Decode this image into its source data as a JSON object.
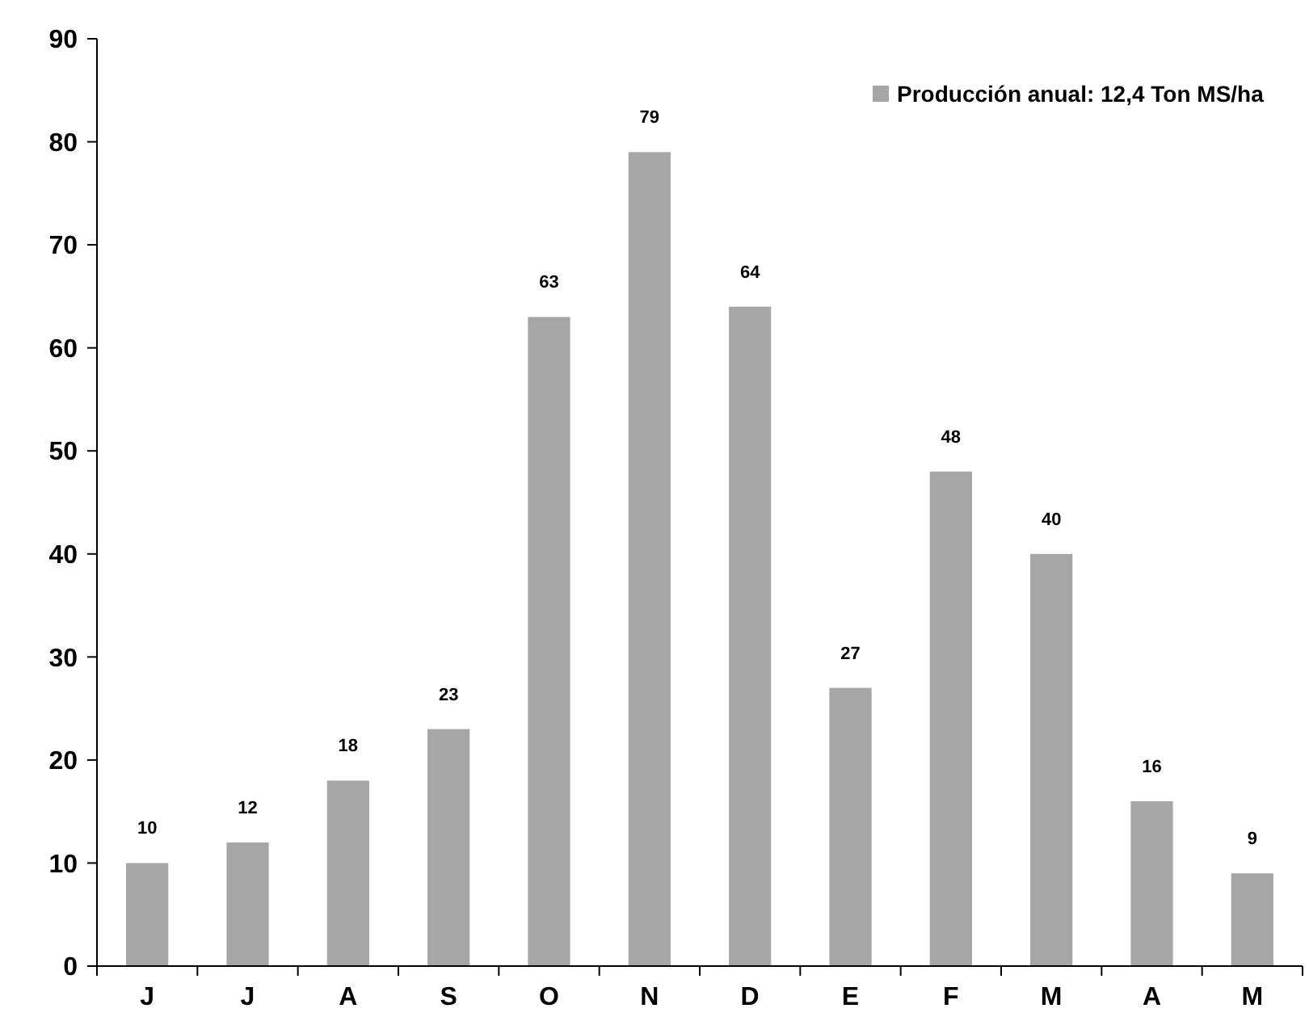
{
  "chart_data": {
    "type": "bar",
    "categories": [
      "J",
      "J",
      "A",
      "S",
      "O",
      "N",
      "D",
      "E",
      "F",
      "M",
      "A",
      "M"
    ],
    "series": [
      {
        "name": "Producción anual: 12,4 Ton MS/ha",
        "color": "#a6a6a6",
        "values": [
          10,
          12,
          18,
          23,
          63,
          79,
          64,
          27,
          48,
          40,
          16,
          9
        ]
      }
    ],
    "ylim": [
      0,
      90
    ],
    "yticks": [
      0,
      10,
      20,
      30,
      40,
      50,
      60,
      70,
      80,
      90
    ],
    "data_labels": true,
    "legend": "top right",
    "grid": false
  }
}
